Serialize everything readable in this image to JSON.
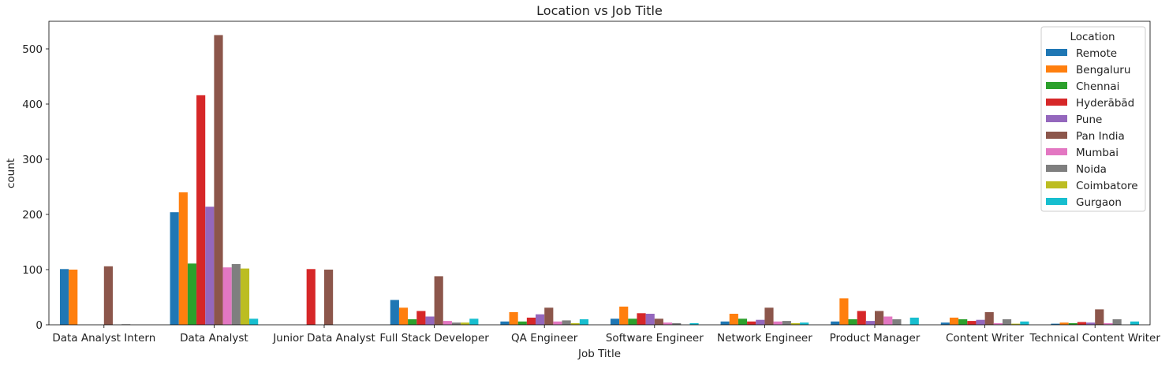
{
  "chart_data": {
    "type": "bar",
    "title": "Location vs Job Title",
    "xlabel": "Job Title",
    "ylabel": "count",
    "ylim": [
      0,
      550
    ],
    "yticks": [
      0,
      100,
      200,
      300,
      400,
      500
    ],
    "grid": false,
    "legend": {
      "title": "Location",
      "placement": "top-right"
    },
    "categories": [
      "Data Analyst Intern",
      "Data Analyst",
      "Junior Data Analyst",
      "Full Stack Developer",
      "QA Engineer",
      "Software Engineer",
      "Network Engineer",
      "Product Manager",
      "Content Writer",
      "Technical Content Writer"
    ],
    "series": [
      {
        "name": "Remote",
        "color": "#1f77b4",
        "values": [
          101,
          204,
          0,
          45,
          6,
          11,
          6,
          6,
          4,
          2
        ]
      },
      {
        "name": "Bengaluru",
        "color": "#ff7f0e",
        "values": [
          100,
          240,
          0,
          31,
          23,
          33,
          20,
          48,
          13,
          4
        ]
      },
      {
        "name": "Chennai",
        "color": "#2ca02c",
        "values": [
          0,
          111,
          0,
          10,
          6,
          11,
          11,
          10,
          10,
          3
        ]
      },
      {
        "name": "Hyderābād",
        "color": "#d62728",
        "values": [
          0,
          416,
          101,
          25,
          13,
          21,
          6,
          25,
          7,
          5
        ]
      },
      {
        "name": "Pune",
        "color": "#9467bd",
        "values": [
          0,
          214,
          0,
          15,
          19,
          20,
          9,
          7,
          9,
          4
        ]
      },
      {
        "name": "Pan India",
        "color": "#8c564b",
        "values": [
          106,
          525,
          100,
          88,
          31,
          11,
          31,
          25,
          23,
          28
        ]
      },
      {
        "name": "Mumbai",
        "color": "#e377c2",
        "values": [
          0,
          104,
          0,
          7,
          6,
          4,
          6,
          15,
          3,
          3
        ]
      },
      {
        "name": "Noida",
        "color": "#7f7f7f",
        "values": [
          1,
          110,
          0,
          4,
          8,
          3,
          7,
          10,
          10,
          10
        ]
      },
      {
        "name": "Coimbatore",
        "color": "#bcbd22",
        "values": [
          0,
          102,
          0,
          4,
          3,
          0,
          3,
          0,
          2,
          0
        ]
      },
      {
        "name": "Gurgaon",
        "color": "#17becf",
        "values": [
          0,
          11,
          0,
          11,
          10,
          3,
          4,
          13,
          6,
          6
        ]
      }
    ]
  }
}
